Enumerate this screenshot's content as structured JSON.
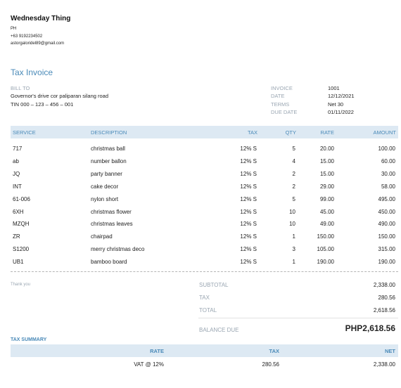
{
  "company": {
    "name": "Wednesday Thing",
    "country": "PH",
    "phone": "+63 9192234502",
    "email": "astorgaloridel89@gmail.com"
  },
  "invoice_title": "Tax Invoice",
  "bill_to": {
    "label": "BILL TO",
    "address": "Governor's drive cor paliparan silang road",
    "tin": "TIN 000 – 123 – 456 – 001"
  },
  "meta": [
    {
      "label": "INVOICE",
      "value": "1001"
    },
    {
      "label": "DATE",
      "value": "12/12/2021"
    },
    {
      "label": "TERMS",
      "value": "Net 30"
    },
    {
      "label": "DUE DATE",
      "value": "01/11/2022"
    }
  ],
  "columns": {
    "service": "SERVICE",
    "description": "DESCRIPTION",
    "tax": "TAX",
    "qty": "QTY",
    "rate": "RATE",
    "amount": "AMOUNT"
  },
  "items": [
    {
      "service": "717",
      "description": "christmas ball",
      "tax": "12% S",
      "qty": "5",
      "rate": "20.00",
      "amount": "100.00"
    },
    {
      "service": "ab",
      "description": "number ballon",
      "tax": "12% S",
      "qty": "4",
      "rate": "15.00",
      "amount": "60.00"
    },
    {
      "service": "JQ",
      "description": "party banner",
      "tax": "12% S",
      "qty": "2",
      "rate": "15.00",
      "amount": "30.00"
    },
    {
      "service": "INT",
      "description": "cake decor",
      "tax": "12% S",
      "qty": "2",
      "rate": "29.00",
      "amount": "58.00"
    },
    {
      "service": "61-006",
      "description": "nylon short",
      "tax": "12% S",
      "qty": "5",
      "rate": "99.00",
      "amount": "495.00"
    },
    {
      "service": "6XH",
      "description": "christmas flower",
      "tax": "12% S",
      "qty": "10",
      "rate": "45.00",
      "amount": "450.00"
    },
    {
      "service": "MZQH",
      "description": "christmas leaves",
      "tax": "12% S",
      "qty": "10",
      "rate": "49.00",
      "amount": "490.00"
    },
    {
      "service": "ZR",
      "description": "chairpad",
      "tax": "12% S",
      "qty": "1",
      "rate": "150.00",
      "amount": "150.00"
    },
    {
      "service": "S1200",
      "description": "merry christmas deco",
      "tax": "12% S",
      "qty": "3",
      "rate": "105.00",
      "amount": "315.00"
    },
    {
      "service": "UB1",
      "description": "bamboo board",
      "tax": "12% S",
      "qty": "1",
      "rate": "190.00",
      "amount": "190.00"
    }
  ],
  "thank_you": "Thank you",
  "totals": {
    "subtotal_label": "SUBTOTAL",
    "subtotal": "2,338.00",
    "tax_label": "TAX",
    "tax": "280.56",
    "total_label": "TOTAL",
    "total": "2,618.56",
    "balance_label": "BALANCE DUE",
    "balance": "PHP2,618.56"
  },
  "tax_summary": {
    "heading": "TAX SUMMARY",
    "columns": {
      "rate": "RATE",
      "tax": "TAX",
      "net": "NET"
    },
    "rows": [
      {
        "rate": "VAT @ 12%",
        "tax": "280.56",
        "net": "2,338.00"
      }
    ]
  }
}
